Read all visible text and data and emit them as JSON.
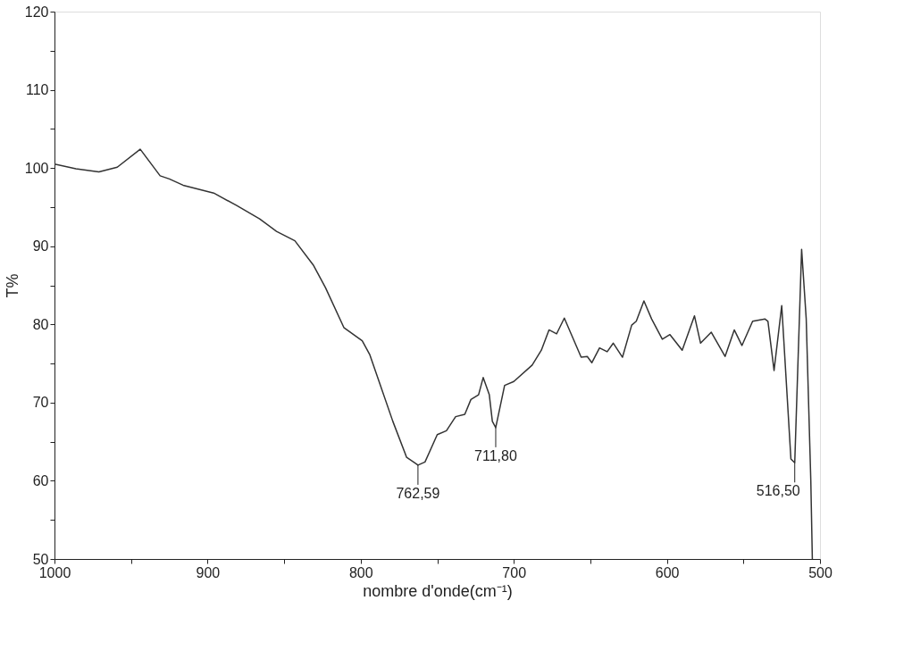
{
  "chart_data": {
    "type": "line",
    "xlabel": "nombre d'onde(cm⁻¹)",
    "ylabel": "T%",
    "xlim": [
      1000,
      500
    ],
    "ylim": [
      50,
      120
    ],
    "xticks": [
      1000,
      {
        "value": 950,
        "label": null
      },
      900,
      {
        "value": 850,
        "label": null
      },
      800,
      {
        "value": 750,
        "label": null
      },
      700,
      {
        "value": 650,
        "label": null
      },
      600,
      {
        "value": 550,
        "label": null
      },
      500
    ],
    "yticks": [
      50,
      {
        "value": 55,
        "label": null
      },
      60,
      {
        "value": 65,
        "label": null
      },
      70,
      {
        "value": 75,
        "label": null
      },
      80,
      {
        "value": 85,
        "label": null
      },
      90,
      {
        "value": 95,
        "label": null
      },
      100,
      {
        "value": 105,
        "label": null
      },
      110,
      {
        "value": 115,
        "label": null
      },
      120
    ],
    "grid": false,
    "marker": "none",
    "line_style": "solid",
    "series": [
      {
        "color": "#333333",
        "x": [
          1000,
          986,
          971,
          959,
          944,
          931,
          925,
          916,
          896,
          881,
          866,
          855,
          843,
          831,
          823,
          811,
          799,
          794,
          788,
          779,
          770,
          764,
          762.59,
          758,
          750,
          744,
          738,
          732,
          728,
          723,
          720,
          716,
          714,
          711.8,
          706,
          700,
          688,
          682,
          677,
          672,
          667,
          656,
          652,
          649,
          644,
          639,
          635,
          629,
          623,
          620,
          615,
          610,
          603,
          598,
          590,
          582,
          578,
          571,
          562,
          556,
          551,
          544,
          536,
          534,
          530,
          525,
          519,
          516.5,
          512,
          509,
          506,
          505
        ],
        "values": [
          100.5,
          99.9,
          99.5,
          100.1,
          102.4,
          99.0,
          98.6,
          97.8,
          96.8,
          95.2,
          93.5,
          91.9,
          90.7,
          87.6,
          84.7,
          79.6,
          77.9,
          76.1,
          72.7,
          67.6,
          63.0,
          62.2,
          62.0,
          62.4,
          65.9,
          66.4,
          68.2,
          68.5,
          70.4,
          71.0,
          73.2,
          71.0,
          67.6,
          66.8,
          72.2,
          72.7,
          74.8,
          76.7,
          79.3,
          78.8,
          80.8,
          75.8,
          75.9,
          75.1,
          77.0,
          76.5,
          77.6,
          75.8,
          79.9,
          80.4,
          83.0,
          80.7,
          78.1,
          78.7,
          76.7,
          81.1,
          77.6,
          79.0,
          75.9,
          79.3,
          77.3,
          80.4,
          80.7,
          80.4,
          74.1,
          82.4,
          62.8,
          62.3,
          89.6,
          80.7,
          60.0,
          50.0
        ]
      }
    ],
    "annotations": [
      {
        "text": "762,59",
        "x": 762.59,
        "y": 62.0
      },
      {
        "text": "711,80",
        "x": 711.8,
        "y": 66.8
      },
      {
        "text": "516,50",
        "x": 516.5,
        "y": 62.3
      }
    ]
  }
}
